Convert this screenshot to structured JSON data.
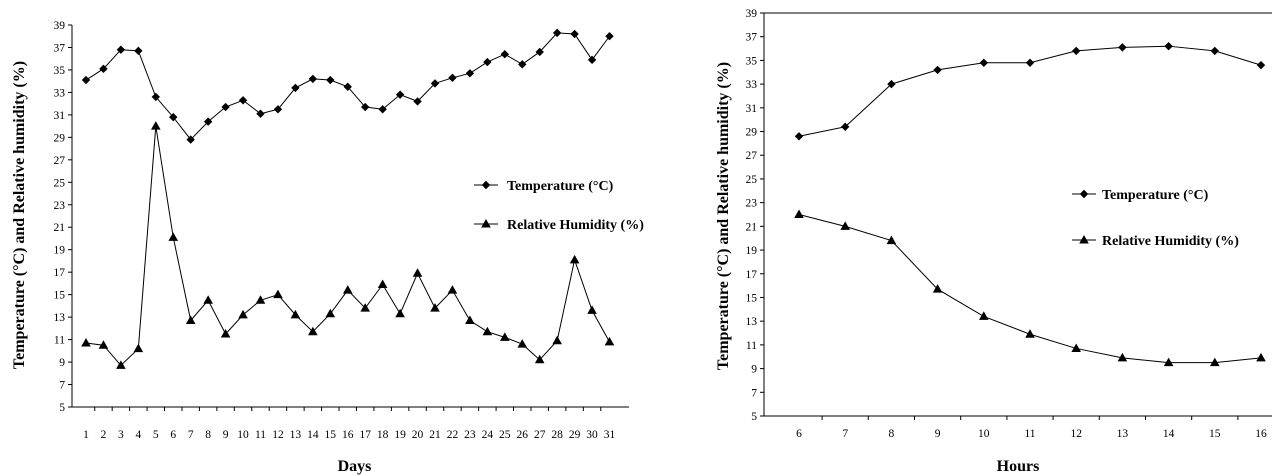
{
  "chart_data": [
    {
      "type": "line",
      "xlabel": "Days",
      "ylabel": "Temperature (°C) and Relative humidity (%)",
      "ylim": [
        5,
        39
      ],
      "y_ticks": [
        "5",
        "7",
        "9",
        "11",
        "13",
        "15",
        "17",
        "19",
        "21",
        "23",
        "25",
        "27",
        "29",
        "31",
        "33",
        "35",
        "37",
        "39"
      ],
      "categories": [
        "1",
        "2",
        "3",
        "4",
        "5",
        "6",
        "7",
        "8",
        "9",
        "10",
        "11",
        "12",
        "13",
        "14",
        "15",
        "16",
        "17",
        "18",
        "19",
        "20",
        "21",
        "22",
        "23",
        "24",
        "25",
        "26",
        "27",
        "28",
        "29",
        "30",
        "31"
      ],
      "legend_position": "right",
      "grid": false,
      "series": [
        {
          "name": "Temperature (°C)",
          "marker": "diamond",
          "values": [
            34.1,
            35.1,
            36.8,
            36.7,
            32.6,
            30.8,
            28.8,
            30.4,
            31.7,
            32.3,
            31.1,
            31.5,
            33.4,
            34.2,
            34.1,
            33.5,
            31.7,
            31.5,
            32.8,
            32.2,
            33.8,
            34.3,
            34.7,
            35.7,
            36.4,
            35.5,
            36.6,
            38.3,
            38.2,
            35.9,
            38.0
          ]
        },
        {
          "name": "Relative Humidity (%)",
          "marker": "triangle",
          "values": [
            10.7,
            10.5,
            8.7,
            10.2,
            30.0,
            20.1,
            12.7,
            14.5,
            11.5,
            13.2,
            14.5,
            15.0,
            13.2,
            11.7,
            13.3,
            15.4,
            13.8,
            15.9,
            13.3,
            16.9,
            13.8,
            15.4,
            12.7,
            11.7,
            11.2,
            10.6,
            9.2,
            10.9,
            18.1,
            13.6,
            10.8
          ]
        }
      ]
    },
    {
      "type": "line",
      "xlabel": "Hours",
      "ylabel": "Temperature (°C) and Relative humidity (%)",
      "ylim": [
        5,
        39
      ],
      "y_ticks": [
        "5",
        "7",
        "9",
        "11",
        "13",
        "15",
        "17",
        "19",
        "21",
        "23",
        "25",
        "27",
        "29",
        "31",
        "33",
        "35",
        "37",
        "39"
      ],
      "categories": [
        "6",
        "7",
        "8",
        "9",
        "10",
        "11",
        "12",
        "13",
        "14",
        "15",
        "16"
      ],
      "legend_position": "right",
      "grid": false,
      "series": [
        {
          "name": "Temperature (°C)",
          "marker": "diamond",
          "values": [
            28.6,
            29.4,
            33.0,
            34.2,
            34.8,
            34.8,
            35.8,
            36.1,
            36.2,
            35.8,
            34.6
          ]
        },
        {
          "name": "Relative Humidity (%)",
          "marker": "triangle",
          "values": [
            22.0,
            21.0,
            19.8,
            15.7,
            13.4,
            11.9,
            10.7,
            9.9,
            9.5,
            9.5,
            9.9
          ]
        }
      ]
    }
  ]
}
